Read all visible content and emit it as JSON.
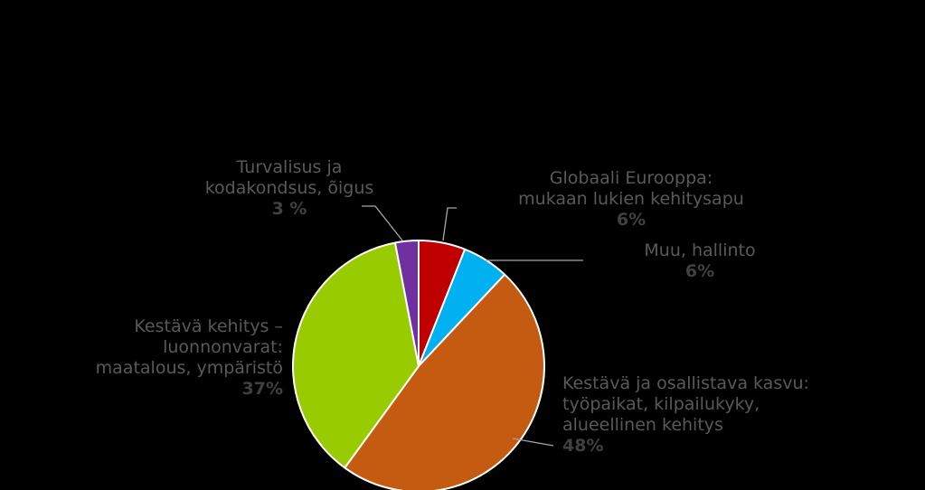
{
  "chart_data": {
    "type": "pie",
    "slices": [
      {
        "name_lines": [
          "Globaali Eurooppa:",
          "mukaan lukien kehitysapu"
        ],
        "value": 6,
        "pct_label": "6%",
        "color": "#C00000"
      },
      {
        "name_lines": [
          "Muu, hallinto"
        ],
        "value": 6,
        "pct_label": "6%",
        "color": "#00B0F0"
      },
      {
        "name_lines": [
          "Kestävä ja osallistava kasvu:",
          "työpaikat, kilpailukyky,",
          "alueellinen kehitys"
        ],
        "value": 48,
        "pct_label": "48%",
        "color": "#C55A11"
      },
      {
        "name_lines": [
          "Kestävä kehitys –",
          "luonnonvarat:",
          "maatalous, ympäristö"
        ],
        "value": 37,
        "pct_label": "37%",
        "color": "#99CC00"
      },
      {
        "name_lines": [
          "Turvalisus ja",
          "kodakondsus, õigus"
        ],
        "value": 3,
        "pct_label": "3 %",
        "color": "#7030A0"
      }
    ],
    "slice_border_color": "#FFFFFF",
    "leader_color": "#A6A6A6"
  }
}
